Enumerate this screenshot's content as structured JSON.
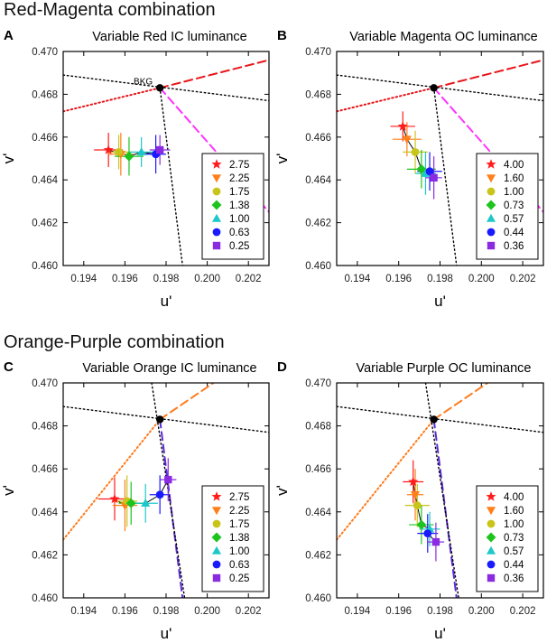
{
  "section_titles": [
    "Red-Magenta combination",
    "Orange-Purple combination"
  ],
  "colors": {
    "red": "#ff1c1c",
    "orange": "#ff7f1a",
    "yellow": "#c8c41a",
    "green": "#1ec41e",
    "cyan": "#1ec8c8",
    "blue": "#1a1aff",
    "violet": "#8a2be2",
    "magenta_line": "#ff33ff",
    "red_line": "#e8161b",
    "orange_line": "#ff7a1a",
    "purple_line": "#5a2bd8"
  },
  "chart_data": [
    {
      "type": "scatter",
      "panel_letter": "A",
      "title": "Variable Red IC luminance",
      "xlabel": "u'",
      "ylabel": "v'",
      "xlim": [
        0.193,
        0.203
      ],
      "ylim": [
        0.46,
        0.47
      ],
      "xticks": [
        "0.194",
        "0.196",
        "0.198",
        "0.200",
        "0.202"
      ],
      "yticks": [
        "0.460",
        "0.462",
        "0.464",
        "0.466",
        "0.468",
        "0.470"
      ],
      "bkg_label": "BKG",
      "bkg": [
        0.1977,
        0.4683
      ],
      "lines": [
        {
          "name": "red-dotted",
          "style": "dotted",
          "color": "red_line",
          "from": [
            0.193,
            0.4672
          ],
          "to": [
            0.1977,
            0.4683
          ]
        },
        {
          "name": "red-dashed",
          "style": "dashed",
          "color": "red_line",
          "from": [
            0.1977,
            0.4683
          ],
          "to": [
            0.203,
            0.4696
          ]
        },
        {
          "name": "magenta-dashed",
          "style": "dashed",
          "color": "magenta_line",
          "from": [
            0.1977,
            0.4683
          ],
          "to": [
            0.203,
            0.4625
          ]
        },
        {
          "name": "black-dotted-1",
          "style": "dotted",
          "color": "black",
          "from": [
            0.193,
            0.4689
          ],
          "to": [
            0.203,
            0.4677
          ]
        },
        {
          "name": "black-dotted-2",
          "style": "dotted",
          "color": "black",
          "from": [
            0.1977,
            0.4683
          ],
          "to": [
            0.1988,
            0.46
          ]
        }
      ],
      "legend_position": "lower-right",
      "series": [
        {
          "label": "2.75",
          "marker": "star",
          "color": "red",
          "x": 0.1952,
          "y": 0.4654,
          "xerr": 0.0007,
          "yerr": 0.0008
        },
        {
          "label": "2.25",
          "marker": "triangle-down",
          "color": "orange",
          "x": 0.1958,
          "y": 0.4652,
          "xerr": 0.0006,
          "yerr": 0.001
        },
        {
          "label": "1.75",
          "marker": "circle",
          "color": "yellow",
          "x": 0.1957,
          "y": 0.4653,
          "xerr": 0.0006,
          "yerr": 0.0008
        },
        {
          "label": "1.38",
          "marker": "diamond",
          "color": "green",
          "x": 0.1962,
          "y": 0.4651,
          "xerr": 0.0007,
          "yerr": 0.0009
        },
        {
          "label": "1.00",
          "marker": "triangle-up",
          "color": "cyan",
          "x": 0.1968,
          "y": 0.4653,
          "xerr": 0.0006,
          "yerr": 0.0007
        },
        {
          "label": "0.63",
          "marker": "circle",
          "color": "blue",
          "x": 0.1975,
          "y": 0.4652,
          "xerr": 0.0005,
          "yerr": 0.0009
        },
        {
          "label": "0.25",
          "marker": "square",
          "color": "violet",
          "x": 0.1977,
          "y": 0.4654,
          "xerr": 0.0005,
          "yerr": 0.0007
        }
      ]
    },
    {
      "type": "scatter",
      "panel_letter": "B",
      "title": "Variable Magenta OC luminance",
      "xlabel": "u'",
      "ylabel": "v'",
      "xlim": [
        0.193,
        0.203
      ],
      "ylim": [
        0.46,
        0.47
      ],
      "xticks": [
        "0.194",
        "0.196",
        "0.198",
        "0.200",
        "0.202"
      ],
      "yticks": [
        "0.460",
        "0.462",
        "0.464",
        "0.466",
        "0.468",
        "0.470"
      ],
      "bkg": [
        0.1977,
        0.4683
      ],
      "lines": [
        {
          "name": "red-dotted",
          "style": "dotted",
          "color": "red_line",
          "from": [
            0.193,
            0.4672
          ],
          "to": [
            0.1977,
            0.4683
          ]
        },
        {
          "name": "red-dashed",
          "style": "dashed",
          "color": "red_line",
          "from": [
            0.1977,
            0.4683
          ],
          "to": [
            0.203,
            0.4696
          ]
        },
        {
          "name": "magenta-dashed",
          "style": "dashed",
          "color": "magenta_line",
          "from": [
            0.1977,
            0.4683
          ],
          "to": [
            0.203,
            0.4625
          ]
        },
        {
          "name": "black-dotted-1",
          "style": "dotted",
          "color": "black",
          "from": [
            0.193,
            0.4689
          ],
          "to": [
            0.203,
            0.4677
          ]
        },
        {
          "name": "black-dotted-2",
          "style": "dotted",
          "color": "black",
          "from": [
            0.1977,
            0.4683
          ],
          "to": [
            0.1988,
            0.46
          ]
        }
      ],
      "legend_position": "lower-right",
      "series": [
        {
          "label": "4.00",
          "marker": "star",
          "color": "red",
          "x": 0.1962,
          "y": 0.4665,
          "xerr": 0.0006,
          "yerr": 0.0007
        },
        {
          "label": "1.60",
          "marker": "triangle-down",
          "color": "orange",
          "x": 0.1964,
          "y": 0.4659,
          "xerr": 0.0007,
          "yerr": 0.0008
        },
        {
          "label": "1.00",
          "marker": "circle",
          "color": "yellow",
          "x": 0.1968,
          "y": 0.4653,
          "xerr": 0.0006,
          "yerr": 0.001
        },
        {
          "label": "0.73",
          "marker": "diamond",
          "color": "green",
          "x": 0.1971,
          "y": 0.4645,
          "xerr": 0.0007,
          "yerr": 0.0009
        },
        {
          "label": "0.57",
          "marker": "triangle-up",
          "color": "cyan",
          "x": 0.1973,
          "y": 0.4643,
          "xerr": 0.0005,
          "yerr": 0.001
        },
        {
          "label": "0.44",
          "marker": "circle",
          "color": "blue",
          "x": 0.1975,
          "y": 0.4644,
          "xerr": 0.0006,
          "yerr": 0.0009
        },
        {
          "label": "0.36",
          "marker": "square",
          "color": "violet",
          "x": 0.1977,
          "y": 0.4641,
          "xerr": 0.0004,
          "yerr": 0.001
        }
      ]
    },
    {
      "type": "scatter",
      "panel_letter": "C",
      "title": "Variable Orange IC luminance",
      "xlabel": "u'",
      "ylabel": "v'",
      "xlim": [
        0.193,
        0.203
      ],
      "ylim": [
        0.46,
        0.47
      ],
      "xticks": [
        "0.194",
        "0.196",
        "0.198",
        "0.200",
        "0.202"
      ],
      "yticks": [
        "0.460",
        "0.462",
        "0.464",
        "0.466",
        "0.468",
        "0.470"
      ],
      "bkg": [
        0.1977,
        0.4683
      ],
      "lines": [
        {
          "name": "orange-dotted",
          "style": "dotted",
          "color": "orange_line",
          "from": [
            0.193,
            0.4627
          ],
          "to": [
            0.1977,
            0.4683
          ]
        },
        {
          "name": "orange-dashed",
          "style": "dashed",
          "color": "orange_line",
          "from": [
            0.1977,
            0.4683
          ],
          "to": [
            0.2003,
            0.47
          ]
        },
        {
          "name": "purple-dashed",
          "style": "dashed",
          "color": "purple_line",
          "from": [
            0.1977,
            0.4683
          ],
          "to": [
            0.1988,
            0.46
          ]
        },
        {
          "name": "black-dotted-1",
          "style": "dotted",
          "color": "black",
          "from": [
            0.193,
            0.4689
          ],
          "to": [
            0.203,
            0.4677
          ]
        },
        {
          "name": "black-dotted-2",
          "style": "dotted",
          "color": "black",
          "from": [
            0.1973,
            0.47
          ],
          "to": [
            0.1989,
            0.46
          ]
        }
      ],
      "legend_position": "lower-right",
      "series": [
        {
          "label": "2.75",
          "marker": "star",
          "color": "red",
          "x": 0.1955,
          "y": 0.4646,
          "xerr": 0.0008,
          "yerr": 0.001
        },
        {
          "label": "2.25",
          "marker": "triangle-down",
          "color": "orange",
          "x": 0.196,
          "y": 0.4643,
          "xerr": 0.0006,
          "yerr": 0.0012
        },
        {
          "label": "1.75",
          "marker": "circle",
          "color": "yellow",
          "x": 0.1961,
          "y": 0.4645,
          "xerr": 0.0005,
          "yerr": 0.0012
        },
        {
          "label": "1.38",
          "marker": "diamond",
          "color": "green",
          "x": 0.1963,
          "y": 0.4644,
          "xerr": 0.0006,
          "yerr": 0.001
        },
        {
          "label": "1.00",
          "marker": "triangle-up",
          "color": "cyan",
          "x": 0.197,
          "y": 0.4644,
          "xerr": 0.0006,
          "yerr": 0.0009
        },
        {
          "label": "0.63",
          "marker": "circle",
          "color": "blue",
          "x": 0.1977,
          "y": 0.4648,
          "xerr": 0.0005,
          "yerr": 0.0009
        },
        {
          "label": "0.25",
          "marker": "square",
          "color": "violet",
          "x": 0.1981,
          "y": 0.4655,
          "xerr": 0.0004,
          "yerr": 0.001
        }
      ]
    },
    {
      "type": "scatter",
      "panel_letter": "D",
      "title": "Variable Purple OC luminance",
      "xlabel": "u'",
      "ylabel": "v'",
      "xlim": [
        0.193,
        0.203
      ],
      "ylim": [
        0.46,
        0.47
      ],
      "xticks": [
        "0.194",
        "0.196",
        "0.198",
        "0.200",
        "0.202"
      ],
      "yticks": [
        "0.460",
        "0.462",
        "0.464",
        "0.466",
        "0.468",
        "0.470"
      ],
      "bkg": [
        0.1977,
        0.4683
      ],
      "lines": [
        {
          "name": "orange-dotted",
          "style": "dotted",
          "color": "orange_line",
          "from": [
            0.193,
            0.4627
          ],
          "to": [
            0.1977,
            0.4683
          ]
        },
        {
          "name": "orange-dashed",
          "style": "dashed",
          "color": "orange_line",
          "from": [
            0.1977,
            0.4683
          ],
          "to": [
            0.2003,
            0.47
          ]
        },
        {
          "name": "purple-dashed",
          "style": "dashed",
          "color": "purple_line",
          "from": [
            0.1977,
            0.4683
          ],
          "to": [
            0.1988,
            0.46
          ]
        },
        {
          "name": "black-dotted-1",
          "style": "dotted",
          "color": "black",
          "from": [
            0.193,
            0.4689
          ],
          "to": [
            0.203,
            0.4677
          ]
        },
        {
          "name": "black-dotted-2",
          "style": "dotted",
          "color": "black",
          "from": [
            0.1973,
            0.47
          ],
          "to": [
            0.1989,
            0.46
          ]
        }
      ],
      "legend_position": "lower-right",
      "series": [
        {
          "label": "4.00",
          "marker": "star",
          "color": "red",
          "x": 0.1967,
          "y": 0.4654,
          "xerr": 0.0005,
          "yerr": 0.001
        },
        {
          "label": "1.60",
          "marker": "triangle-down",
          "color": "orange",
          "x": 0.1968,
          "y": 0.4648,
          "xerr": 0.0004,
          "yerr": 0.0012
        },
        {
          "label": "1.00",
          "marker": "circle",
          "color": "yellow",
          "x": 0.1969,
          "y": 0.4643,
          "xerr": 0.0006,
          "yerr": 0.001
        },
        {
          "label": "0.73",
          "marker": "diamond",
          "color": "green",
          "x": 0.1971,
          "y": 0.4634,
          "xerr": 0.0006,
          "yerr": 0.0009
        },
        {
          "label": "0.57",
          "marker": "triangle-up",
          "color": "cyan",
          "x": 0.1975,
          "y": 0.4632,
          "xerr": 0.0005,
          "yerr": 0.0008
        },
        {
          "label": "0.44",
          "marker": "circle",
          "color": "blue",
          "x": 0.1974,
          "y": 0.463,
          "xerr": 0.0005,
          "yerr": 0.0009
        },
        {
          "label": "0.36",
          "marker": "square",
          "color": "violet",
          "x": 0.1978,
          "y": 0.4626,
          "xerr": 0.0004,
          "yerr": 0.0009
        }
      ]
    }
  ]
}
